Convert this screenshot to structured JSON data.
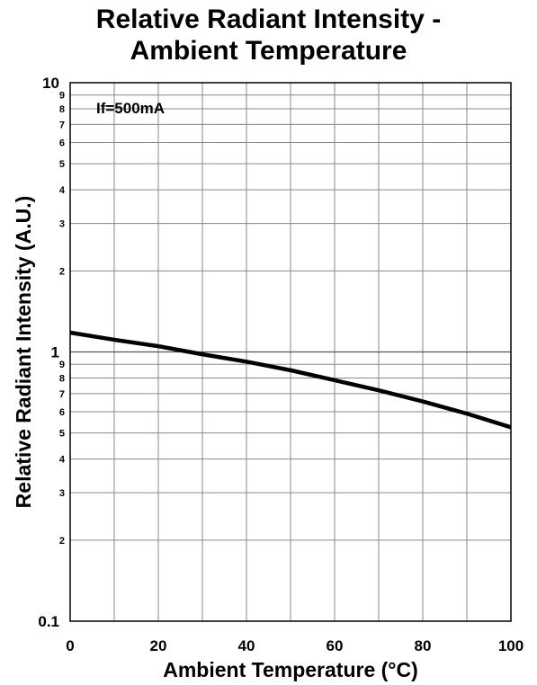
{
  "chart_data": {
    "type": "line",
    "title_line1": "Relative Radiant Intensity -",
    "title_line2": "Ambient Temperature",
    "xlabel": "Ambient Temperature (°C)",
    "ylabel": "Relative Radiant Intensity (A.U.)",
    "annotation": "If=500mA",
    "xlim": [
      0,
      100
    ],
    "ylim": [
      0.1,
      10
    ],
    "yscale": "log",
    "x_ticks": [
      0,
      20,
      40,
      60,
      80,
      100
    ],
    "x_minor_gridlines": [
      10,
      30,
      50,
      70,
      90
    ],
    "y_major_ticks": [
      {
        "value": 0.1,
        "label": "0.1"
      },
      {
        "value": 1,
        "label": "1"
      },
      {
        "value": 10,
        "label": "10"
      }
    ],
    "y_minor_ticks": [
      {
        "value": 0.2,
        "label": "2"
      },
      {
        "value": 0.3,
        "label": "3"
      },
      {
        "value": 0.4,
        "label": "4"
      },
      {
        "value": 0.5,
        "label": "5"
      },
      {
        "value": 0.6,
        "label": "6"
      },
      {
        "value": 0.7,
        "label": "7"
      },
      {
        "value": 0.8,
        "label": "8"
      },
      {
        "value": 0.9,
        "label": "9"
      },
      {
        "value": 2,
        "label": "2"
      },
      {
        "value": 3,
        "label": "3"
      },
      {
        "value": 4,
        "label": "4"
      },
      {
        "value": 5,
        "label": "5"
      },
      {
        "value": 6,
        "label": "6"
      },
      {
        "value": 7,
        "label": "7"
      },
      {
        "value": 8,
        "label": "8"
      },
      {
        "value": 9,
        "label": "9"
      }
    ],
    "grid": true,
    "series": [
      {
        "color": "#000000",
        "x": [
          0,
          10,
          20,
          30,
          40,
          50,
          60,
          70,
          80,
          90,
          100
        ],
        "y": [
          1.18,
          1.11,
          1.05,
          0.98,
          0.92,
          0.855,
          0.785,
          0.72,
          0.655,
          0.59,
          0.525
        ]
      }
    ]
  }
}
